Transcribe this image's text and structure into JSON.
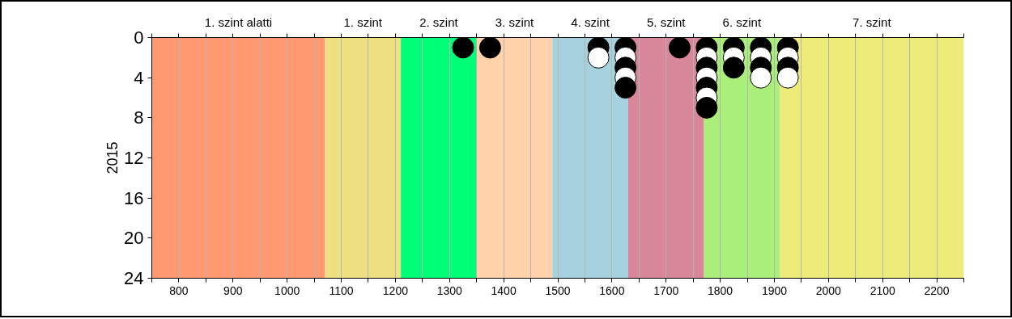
{
  "chart_data": {
    "type": "scatter",
    "ylabel": "2015",
    "xlim": [
      750,
      2250
    ],
    "ylim": [
      24,
      0
    ],
    "xticks": [
      {
        "value": 750,
        "label": null
      },
      800,
      {
        "value": 850,
        "label": null
      },
      900,
      {
        "value": 950,
        "label": null
      },
      1000,
      {
        "value": 1050,
        "label": null
      },
      1100,
      {
        "value": 1150,
        "label": null
      },
      1200,
      {
        "value": 1250,
        "label": null
      },
      1300,
      {
        "value": 1350,
        "label": null
      },
      1400,
      {
        "value": 1450,
        "label": null
      },
      1500,
      {
        "value": 1550,
        "label": null
      },
      1600,
      {
        "value": 1650,
        "label": null
      },
      1700,
      {
        "value": 1750,
        "label": null
      },
      1800,
      {
        "value": 1850,
        "label": null
      },
      1900,
      {
        "value": 1950,
        "label": null
      },
      2000,
      {
        "value": 2050,
        "label": null
      },
      2100,
      {
        "value": 2150,
        "label": null
      },
      2200,
      {
        "value": 2250,
        "label": null
      }
    ],
    "yticks": [
      0,
      4,
      8,
      12,
      16,
      20,
      24
    ],
    "grid": "x",
    "marker": "circle",
    "bands": [
      {
        "axis": "x",
        "from": 750,
        "to": 1070,
        "label": "1. szint alatti",
        "color": "#ff9971"
      },
      {
        "axis": "x",
        "from": 1070,
        "to": 1210,
        "label": "1. szint",
        "color": "#f0e084"
      },
      {
        "axis": "x",
        "from": 1210,
        "to": 1350,
        "label": "2. szint",
        "color": "#00ff78"
      },
      {
        "axis": "x",
        "from": 1350,
        "to": 1490,
        "label": "3. szint",
        "color": "#fed3ab"
      },
      {
        "axis": "x",
        "from": 1490,
        "to": 1630,
        "label": "4. szint",
        "color": "#a6d2e0"
      },
      {
        "axis": "x",
        "from": 1630,
        "to": 1770,
        "label": "5. szint",
        "color": "#d88699"
      },
      {
        "axis": "x",
        "from": 1770,
        "to": 1910,
        "label": "6. szint",
        "color": "#aaef7a"
      },
      {
        "axis": "x",
        "from": 1910,
        "to": 2250,
        "label": "7. szint",
        "color": "#edec7a"
      }
    ],
    "series": [
      {
        "x": [
          1325,
          1375,
          1575,
          1575,
          1625,
          1625,
          1625,
          1625,
          1625,
          1725,
          1775,
          1775,
          1775,
          1775,
          1775,
          1775,
          1775,
          1825,
          1825,
          1825,
          1875,
          1875,
          1875,
          1875,
          1925,
          1925,
          1925,
          1925
        ],
        "values": [
          1,
          1,
          1,
          2,
          1,
          2,
          3,
          4,
          5,
          1,
          1,
          2,
          3,
          4,
          5,
          6,
          7,
          1,
          2,
          3,
          1,
          2,
          3,
          4,
          1,
          2,
          3,
          4
        ],
        "colors": [
          "#000000",
          "#000000",
          "#000000",
          "#ffffff",
          "#000000",
          "#ffffff",
          "#000000",
          "#ffffff",
          "#000000",
          "#000000",
          "#000000",
          "#ffffff",
          "#000000",
          "#ffffff",
          "#000000",
          "#ffffff",
          "#000000",
          "#000000",
          "#ffffff",
          "#000000",
          "#000000",
          "#ffffff",
          "#000000",
          "#ffffff",
          "#000000",
          "#ffffff",
          "#000000",
          "#ffffff"
        ]
      }
    ]
  }
}
